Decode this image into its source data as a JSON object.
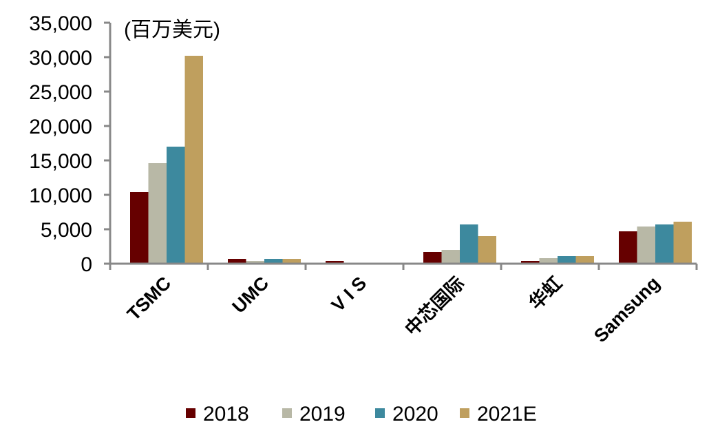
{
  "chart_data": {
    "type": "bar",
    "title": "",
    "unit_label": "(百万美元)",
    "xlabel": "",
    "ylabel": "",
    "ylim": [
      0,
      35000
    ],
    "yticks": [
      0,
      5000,
      10000,
      15000,
      20000,
      25000,
      30000,
      35000
    ],
    "ytick_labels": [
      "0",
      "5,000",
      "10,000",
      "15,000",
      "20,000",
      "25,000",
      "30,000",
      "35,000"
    ],
    "grid": false,
    "legend_position": "bottom",
    "categories": [
      "TSMC",
      "UMC",
      "V I S",
      "中芯国际",
      "华虹",
      "Samsung"
    ],
    "series": [
      {
        "name": "2018",
        "color": "#660000",
        "values": [
          10400,
          700,
          400,
          1700,
          400,
          4700
        ]
      },
      {
        "name": "2019",
        "color": "#B8B8A6",
        "values": [
          14600,
          400,
          100,
          2000,
          800,
          5400
        ]
      },
      {
        "name": "2020",
        "color": "#3D899E",
        "values": [
          17000,
          700,
          100,
          5700,
          1100,
          5700
        ]
      },
      {
        "name": "2021E",
        "color": "#BF9F5E",
        "values": [
          30200,
          700,
          100,
          4000,
          1100,
          6100
        ]
      }
    ]
  }
}
